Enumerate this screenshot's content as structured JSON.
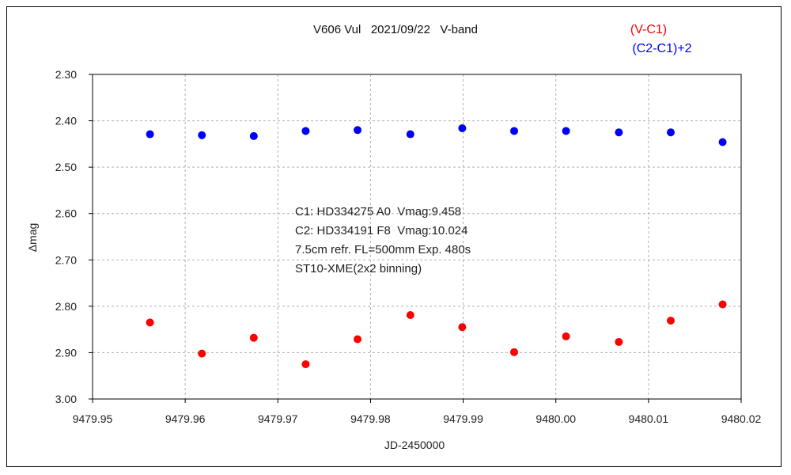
{
  "chart_data": {
    "type": "scatter",
    "title": "V606 Vul   2021/09/22   V-band",
    "xlabel": "JD-2450000",
    "ylabel": "Δmag",
    "xlim": [
      9479.95,
      9480.02
    ],
    "ylim": [
      2.3,
      3.0
    ],
    "y_inverted": true,
    "grid": true,
    "legend_position": "top-right",
    "x_ticks": [
      "9479.95",
      "9479.96",
      "9479.97",
      "9479.98",
      "9479.99",
      "9480.00",
      "9480.01",
      "9480.02"
    ],
    "y_ticks": [
      "2.30",
      "2.40",
      "2.50",
      "2.60",
      "2.70",
      "2.80",
      "2.90",
      "3.00"
    ],
    "x": [
      9479.9562,
      9479.9618,
      9479.9674,
      9479.973,
      9479.9786,
      9479.9843,
      9479.9899,
      9479.9955,
      9480.0011,
      9480.0068,
      9480.0124,
      9480.018
    ],
    "series": [
      {
        "name": "(V-C1)",
        "color": "#ff0000",
        "values": [
          2.835,
          2.902,
          2.868,
          2.925,
          2.871,
          2.819,
          2.845,
          2.899,
          2.865,
          2.877,
          2.831,
          2.796
        ]
      },
      {
        "name": "(C2-C1)+2",
        "color": "#0000ff",
        "values": [
          2.429,
          2.431,
          2.433,
          2.422,
          2.42,
          2.429,
          2.416,
          2.422,
          2.422,
          2.425,
          2.425,
          2.446
        ]
      }
    ],
    "annotations": [
      "C1: HD334275 A0  Vmag:9.458",
      "C2: HD334191 F8  Vmag:10.024",
      "7.5cm refr. FL=500mm Exp. 480s",
      "ST10-XME(2x2 binning)"
    ]
  }
}
